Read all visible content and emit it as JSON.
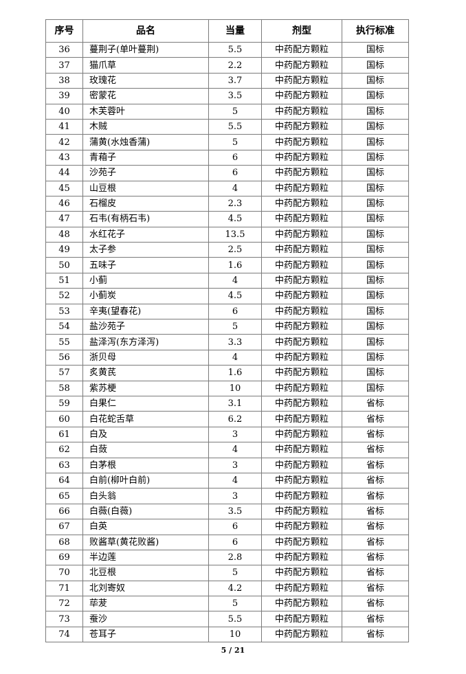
{
  "table": {
    "headers": [
      "序号",
      "品名",
      "当量",
      "剂型",
      "执行标准"
    ],
    "rows": [
      [
        "36",
        "蔓荆子(单叶蔓荆)",
        "5.5",
        "中药配方颗粒",
        "国标"
      ],
      [
        "37",
        "猫爪草",
        "2.2",
        "中药配方颗粒",
        "国标"
      ],
      [
        "38",
        "玫瑰花",
        "3.7",
        "中药配方颗粒",
        "国标"
      ],
      [
        "39",
        "密蒙花",
        "3.5",
        "中药配方颗粒",
        "国标"
      ],
      [
        "40",
        "木芙蓉叶",
        "5",
        "中药配方颗粒",
        "国标"
      ],
      [
        "41",
        "木贼",
        "5.5",
        "中药配方颗粒",
        "国标"
      ],
      [
        "42",
        "蒲黄(水烛香蒲)",
        "5",
        "中药配方颗粒",
        "国标"
      ],
      [
        "43",
        "青葙子",
        "6",
        "中药配方颗粒",
        "国标"
      ],
      [
        "44",
        "沙苑子",
        "6",
        "中药配方颗粒",
        "国标"
      ],
      [
        "45",
        "山豆根",
        "4",
        "中药配方颗粒",
        "国标"
      ],
      [
        "46",
        "石榴皮",
        "2.3",
        "中药配方颗粒",
        "国标"
      ],
      [
        "47",
        "石韦(有柄石韦)",
        "4.5",
        "中药配方颗粒",
        "国标"
      ],
      [
        "48",
        "水红花子",
        "13.5",
        "中药配方颗粒",
        "国标"
      ],
      [
        "49",
        "太子参",
        "2.5",
        "中药配方颗粒",
        "国标"
      ],
      [
        "50",
        "五味子",
        "1.6",
        "中药配方颗粒",
        "国标"
      ],
      [
        "51",
        "小蓟",
        "4",
        "中药配方颗粒",
        "国标"
      ],
      [
        "52",
        "小蓟炭",
        "4.5",
        "中药配方颗粒",
        "国标"
      ],
      [
        "53",
        "辛夷(望春花)",
        "6",
        "中药配方颗粒",
        "国标"
      ],
      [
        "54",
        "盐沙苑子",
        "5",
        "中药配方颗粒",
        "国标"
      ],
      [
        "55",
        "盐泽泻(东方泽泻)",
        "3.3",
        "中药配方颗粒",
        "国标"
      ],
      [
        "56",
        "浙贝母",
        "4",
        "中药配方颗粒",
        "国标"
      ],
      [
        "57",
        "炙黄芪",
        "1.6",
        "中药配方颗粒",
        "国标"
      ],
      [
        "58",
        "紫苏梗",
        "10",
        "中药配方颗粒",
        "国标"
      ],
      [
        "59",
        "白果仁",
        "3.1",
        "中药配方颗粒",
        "省标"
      ],
      [
        "60",
        "白花蛇舌草",
        "6.2",
        "中药配方颗粒",
        "省标"
      ],
      [
        "61",
        "白及",
        "3",
        "中药配方颗粒",
        "省标"
      ],
      [
        "62",
        "白蔹",
        "4",
        "中药配方颗粒",
        "省标"
      ],
      [
        "63",
        "白茅根",
        "3",
        "中药配方颗粒",
        "省标"
      ],
      [
        "64",
        "白前(柳叶白前)",
        "4",
        "中药配方颗粒",
        "省标"
      ],
      [
        "65",
        "白头翁",
        "3",
        "中药配方颗粒",
        "省标"
      ],
      [
        "66",
        "白薇(白薇)",
        "3.5",
        "中药配方颗粒",
        "省标"
      ],
      [
        "67",
        "白英",
        "6",
        "中药配方颗粒",
        "省标"
      ],
      [
        "68",
        "败酱草(黄花败酱)",
        "6",
        "中药配方颗粒",
        "省标"
      ],
      [
        "69",
        "半边莲",
        "2.8",
        "中药配方颗粒",
        "省标"
      ],
      [
        "70",
        "北豆根",
        "5",
        "中药配方颗粒",
        "省标"
      ],
      [
        "71",
        "北刘寄奴",
        "4.2",
        "中药配方颗粒",
        "省标"
      ],
      [
        "72",
        "荜茇",
        "5",
        "中药配方颗粒",
        "省标"
      ],
      [
        "73",
        "蚕沙",
        "5.5",
        "中药配方颗粒",
        "省标"
      ],
      [
        "74",
        "苍耳子",
        "10",
        "中药配方颗粒",
        "省标"
      ]
    ]
  },
  "footer": {
    "page": "5 / 21"
  }
}
